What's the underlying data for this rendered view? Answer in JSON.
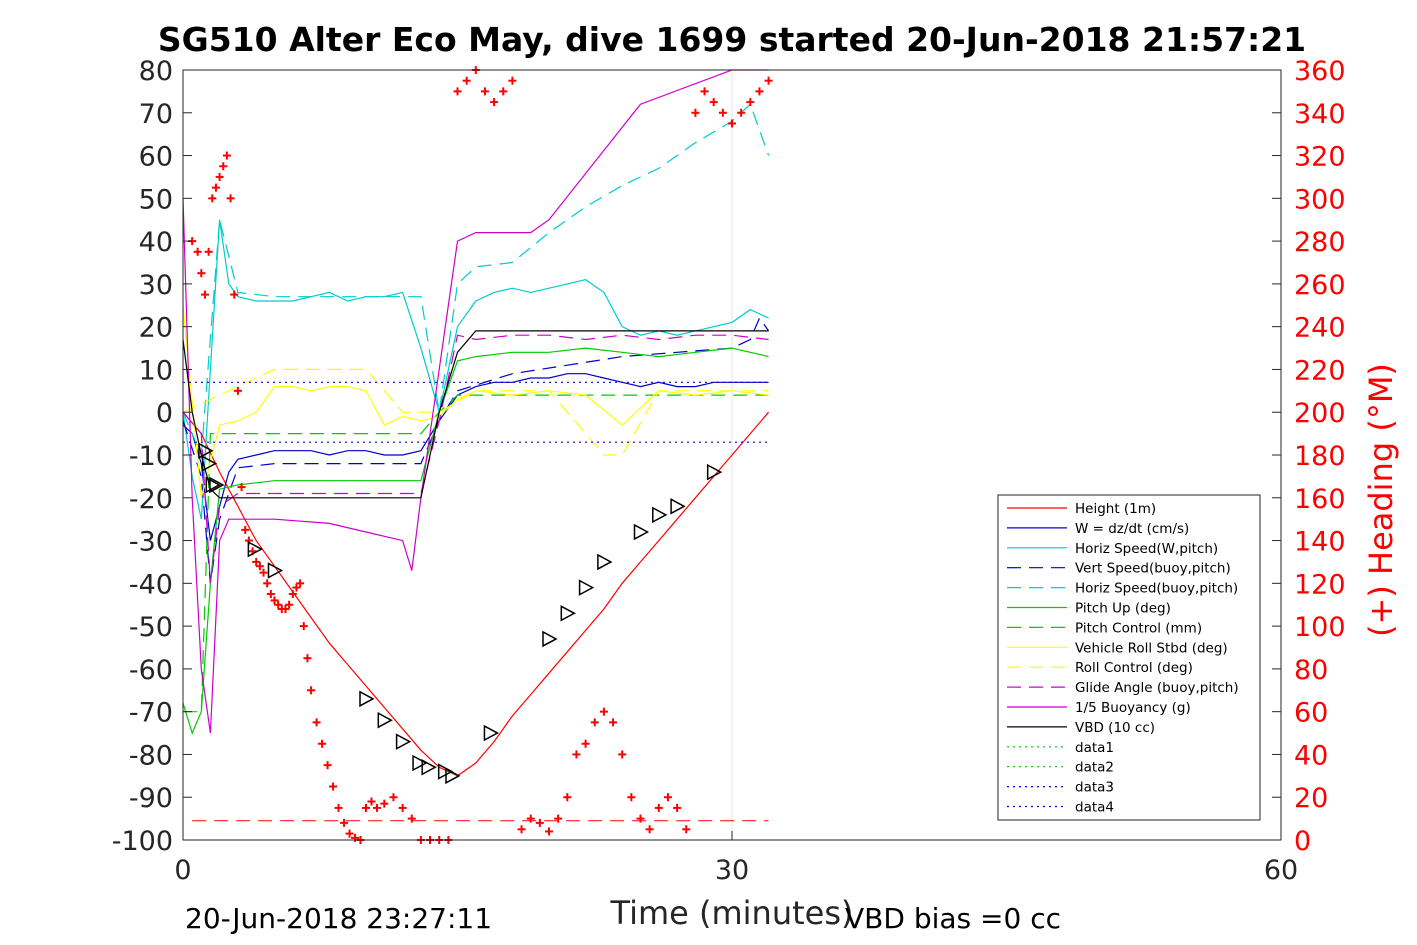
{
  "chart_data": {
    "type": "line",
    "title": "SG510 Alter Eco May, dive 1699 started 20-Jun-2018 21:57:21",
    "xlabel": "Time (minutes)",
    "ylabel_right": "(+) Heading (°M)",
    "footer_left": "20-Jun-2018 23:27:11",
    "footer_right": "VBD bias =0 cc",
    "xlim": [
      0,
      60
    ],
    "ylim": [
      -100,
      80
    ],
    "ylim_right": [
      0,
      360
    ],
    "x_ticks": [
      "0",
      "30",
      "60"
    ],
    "y_ticks": [
      "80",
      "70",
      "60",
      "50",
      "40",
      "30",
      "20",
      "10",
      "0",
      "-10",
      "-20",
      "-30",
      "-40",
      "-50",
      "-60",
      "-70",
      "-80",
      "-90",
      "-100"
    ],
    "y_ticks_right": [
      "360",
      "340",
      "320",
      "300",
      "280",
      "260",
      "240",
      "220",
      "200",
      "180",
      "160",
      "140",
      "120",
      "100",
      "80",
      "60",
      "40",
      "20",
      "0"
    ],
    "grid": "x at 30",
    "legend_position": "bottom-right",
    "series": [
      {
        "name": "Height (1m)",
        "color": "#ff0000",
        "style": "solid",
        "x": [
          0,
          1,
          2,
          3,
          4,
          5,
          6,
          7,
          8,
          9,
          10,
          11,
          12,
          13,
          14,
          15,
          16,
          17,
          18,
          19,
          20,
          21,
          22,
          23,
          24,
          25,
          26,
          27,
          28,
          29,
          30,
          31,
          32
        ],
        "y": [
          0,
          -5,
          -14,
          -22,
          -30,
          -36,
          -42,
          -48,
          -54,
          -59,
          -64,
          -69,
          -74,
          -79,
          -83,
          -85,
          -82,
          -77,
          -71,
          -66,
          -61,
          -56,
          -51,
          -46,
          -40,
          -35,
          -30,
          -25,
          -20,
          -15,
          -10,
          -5,
          0
        ]
      },
      {
        "name": "W = dz/dt (cm/s)",
        "color": "#0000cc",
        "style": "solid",
        "x": [
          0,
          0.5,
          1,
          1.5,
          2,
          2.5,
          3,
          4,
          5,
          6,
          7,
          8,
          9,
          10,
          11,
          12,
          13,
          14,
          15,
          16,
          17,
          18,
          19,
          20,
          21,
          22,
          23,
          24,
          25,
          26,
          27,
          28,
          29,
          30,
          31,
          32
        ],
        "y": [
          -3,
          -5,
          -12,
          -30,
          -22,
          -14,
          -11,
          -10,
          -9,
          -9,
          -9,
          -10,
          -9,
          -9,
          -10,
          -10,
          -9,
          -2,
          4,
          6,
          7,
          7,
          8,
          8,
          9,
          9,
          8,
          7,
          6,
          7,
          6,
          6,
          7,
          7,
          7,
          7
        ]
      },
      {
        "name": "Horiz Speed(W,pitch)",
        "color": "#00cccc",
        "style": "solid",
        "x": [
          0,
          0.5,
          1,
          1.5,
          2,
          2.5,
          3,
          4,
          5,
          6,
          7,
          8,
          9,
          10,
          11,
          12,
          13,
          14,
          15,
          16,
          17,
          18,
          19,
          20,
          21,
          22,
          23,
          24,
          25,
          26,
          27,
          28,
          29,
          30,
          31,
          32
        ],
        "y": [
          0,
          -15,
          -25,
          10,
          45,
          30,
          27,
          26,
          26,
          26,
          27,
          28,
          26,
          27,
          27,
          28,
          15,
          0,
          20,
          26,
          28,
          29,
          28,
          29,
          30,
          31,
          28,
          20,
          18,
          19,
          18,
          19,
          20,
          21,
          24,
          22
        ]
      },
      {
        "name": "Vert Speed(buoy,pitch)",
        "color": "#0000cc",
        "style": "dashed",
        "x": [
          0,
          1,
          1.5,
          2,
          3,
          5,
          8,
          11,
          13,
          14,
          15,
          18,
          21,
          24,
          27,
          30,
          31,
          31.5,
          32
        ],
        "y": [
          -2,
          -15,
          -40,
          -25,
          -13,
          -12,
          -12,
          -12,
          -12,
          -2,
          5,
          9,
          11,
          13,
          14,
          15,
          17,
          22,
          19
        ]
      },
      {
        "name": "Horiz Speed(buoy,pitch)",
        "color": "#00cccc",
        "style": "dashed",
        "x": [
          0,
          1,
          2,
          3,
          5,
          8,
          11,
          13,
          14,
          15,
          16,
          18,
          20,
          22,
          24,
          26,
          28,
          30,
          31,
          32
        ],
        "y": [
          0,
          -10,
          45,
          28,
          27,
          27,
          27,
          27,
          0,
          30,
          34,
          35,
          42,
          48,
          53,
          57,
          63,
          68,
          72,
          60
        ]
      },
      {
        "name": "Pitch Up (deg)",
        "color": "#00cc00",
        "style": "solid",
        "x": [
          0,
          0.5,
          1,
          1.5,
          2,
          3,
          5,
          8,
          11,
          13,
          14,
          15,
          16,
          18,
          20,
          22,
          24,
          26,
          28,
          30,
          32
        ],
        "y": [
          -68,
          -75,
          -70,
          -40,
          -18,
          -17,
          -16,
          -16,
          -16,
          -16,
          0,
          12,
          13,
          14,
          14,
          15,
          14,
          13,
          14,
          15,
          13
        ]
      },
      {
        "name": "Pitch Control (mm)",
        "color": "#00cc00",
        "style": "dashed",
        "x": [
          0,
          1,
          1.5,
          2,
          13,
          14,
          15,
          32
        ],
        "y": [
          -70,
          -70,
          -5,
          -5,
          -5,
          0,
          4,
          4
        ]
      },
      {
        "name": "Vehicle Roll Stbd (deg)",
        "color": "#ffff00",
        "style": "solid",
        "x": [
          0,
          1,
          2,
          3,
          4,
          5,
          6,
          7,
          8,
          9,
          10,
          11,
          12,
          13,
          14,
          15,
          16,
          18,
          20,
          22,
          24,
          26,
          28,
          30,
          32
        ],
        "y": [
          25,
          -20,
          -3,
          -2,
          0,
          6,
          6,
          5,
          6,
          6,
          5,
          -3,
          -1,
          -2,
          -1,
          3,
          5,
          4,
          5,
          4,
          -3,
          5,
          4,
          5,
          4
        ]
      },
      {
        "name": "Roll Control (deg)",
        "color": "#ffff00",
        "style": "dashed",
        "x": [
          0,
          5,
          8,
          10,
          12,
          14,
          16,
          20,
          23,
          24,
          26,
          30,
          32
        ],
        "y": [
          0,
          10,
          10,
          10,
          0,
          0,
          5,
          5,
          -10,
          -10,
          5,
          5,
          5
        ]
      },
      {
        "name": "Glide Angle (buoy,pitch)",
        "color": "#cc00cc",
        "style": "dashed",
        "x": [
          0,
          1,
          1.5,
          2,
          3,
          5,
          8,
          11,
          13,
          14,
          15,
          16,
          18,
          20,
          22,
          24,
          26,
          28,
          30,
          32
        ],
        "y": [
          0,
          -5,
          -40,
          -22,
          -19,
          -19,
          -19,
          -19,
          -19,
          -2,
          18,
          17,
          18,
          18,
          17,
          18,
          17,
          18,
          18,
          17
        ]
      },
      {
        "name": "1/5 Buoyancy (g)",
        "color": "#cc00cc",
        "style": "solid",
        "x": [
          0,
          0.5,
          1,
          1.5,
          2,
          2.5,
          5,
          8,
          10,
          12,
          12.5,
          13,
          14,
          15,
          16,
          19,
          20,
          25,
          30,
          32
        ],
        "y": [
          50,
          -20,
          -60,
          -75,
          -30,
          -25,
          -25,
          -26,
          -28,
          -30,
          -37,
          -20,
          10,
          40,
          42,
          42,
          45,
          72,
          95,
          100
        ]
      },
      {
        "name": "VBD (10 cc)",
        "color": "#000000",
        "style": "solid",
        "x": [
          0,
          0.5,
          1,
          1.5,
          2,
          13,
          14,
          15,
          16,
          17,
          32
        ],
        "y": [
          17,
          0,
          -10,
          -18,
          -20,
          -20,
          0,
          14,
          19,
          19,
          19
        ]
      },
      {
        "name": "data1",
        "color": "#00cc00",
        "style": "dotted",
        "x": [],
        "y": []
      },
      {
        "name": "data2",
        "color": "#00cc00",
        "style": "dotted",
        "x": [],
        "y": []
      },
      {
        "name": "data3",
        "color": "#0000cc",
        "style": "dotted",
        "x": [
          0,
          32
        ],
        "y": [
          7,
          7
        ]
      },
      {
        "name": "data4",
        "color": "#0000cc",
        "style": "dotted",
        "x": [
          0,
          32
        ],
        "y": [
          -7,
          -7
        ]
      }
    ],
    "heading_points": {
      "color": "#ff0000",
      "axis": "right",
      "x": [
        0.5,
        0.8,
        1.0,
        1.2,
        1.4,
        1.6,
        1.8,
        2.0,
        2.2,
        2.4,
        2.6,
        2.8,
        3.0,
        3.2,
        3.4,
        3.6,
        3.8,
        4.0,
        4.2,
        4.4,
        4.6,
        4.8,
        5.0,
        5.2,
        5.4,
        5.6,
        5.8,
        6.0,
        6.2,
        6.4,
        6.6,
        6.8,
        7.0,
        7.3,
        7.6,
        7.9,
        8.2,
        8.5,
        8.8,
        9.1,
        9.4,
        9.7,
        10.0,
        10.3,
        10.6,
        11.0,
        11.5,
        12.0,
        12.5,
        13.0,
        13.5,
        14.0,
        14.5,
        15.0,
        15.5,
        16.0,
        16.5,
        17.0,
        17.5,
        18.0,
        18.5,
        19.0,
        19.5,
        20.0,
        20.5,
        21.0,
        21.5,
        22.0,
        22.5,
        23.0,
        23.5,
        24.0,
        24.5,
        25.0,
        25.5,
        26.0,
        26.5,
        27.0,
        27.5,
        28.0,
        28.5,
        29.0,
        29.5,
        30.0,
        30.5,
        31.0,
        31.5,
        32.0
      ],
      "y": [
        280,
        275,
        265,
        255,
        275,
        300,
        305,
        310,
        315,
        320,
        300,
        255,
        210,
        165,
        145,
        140,
        135,
        130,
        128,
        125,
        120,
        115,
        112,
        110,
        108,
        108,
        110,
        115,
        118,
        120,
        100,
        85,
        70,
        55,
        45,
        35,
        25,
        15,
        8,
        3,
        1,
        0,
        15,
        18,
        15,
        17,
        20,
        15,
        10,
        0,
        0,
        0,
        0,
        350,
        355,
        360,
        350,
        345,
        350,
        355,
        5,
        10,
        8,
        4,
        10,
        20,
        40,
        45,
        55,
        60,
        55,
        40,
        20,
        10,
        5,
        15,
        20,
        15,
        5,
        340,
        350,
        345,
        340,
        335,
        340,
        345,
        350,
        355
      ]
    },
    "triangles": {
      "x": [
        1.2,
        1.4,
        1.6,
        1.8,
        3.9,
        5.0,
        10.0,
        11.0,
        12.0,
        12.9,
        13.4,
        14.3,
        14.7,
        16.8,
        20.0,
        21.0,
        22.0,
        23.0,
        25.0,
        26.0,
        27.0,
        29.0
      ],
      "y": [
        -9,
        -12,
        -17,
        -17,
        -32,
        -37,
        -67,
        -72,
        -77,
        -82,
        -83,
        -84,
        -85,
        -75,
        -53,
        -47,
        -41,
        -35,
        -28,
        -24,
        -22,
        -14
      ]
    }
  },
  "legend": {
    "entries": [
      "Height (1m)",
      "W = dz/dt (cm/s)",
      "Horiz Speed(W,pitch)",
      "Vert Speed(buoy,pitch)",
      "Horiz Speed(buoy,pitch)",
      "Pitch Up (deg)",
      "Pitch Control (mm)",
      "Vehicle Roll Stbd (deg)",
      "Roll Control (deg)",
      "Glide Angle (buoy,pitch)",
      "1/5 Buoyancy (g)",
      "VBD (10 cc)",
      "data1",
      "data2",
      "data3",
      "data4"
    ]
  }
}
